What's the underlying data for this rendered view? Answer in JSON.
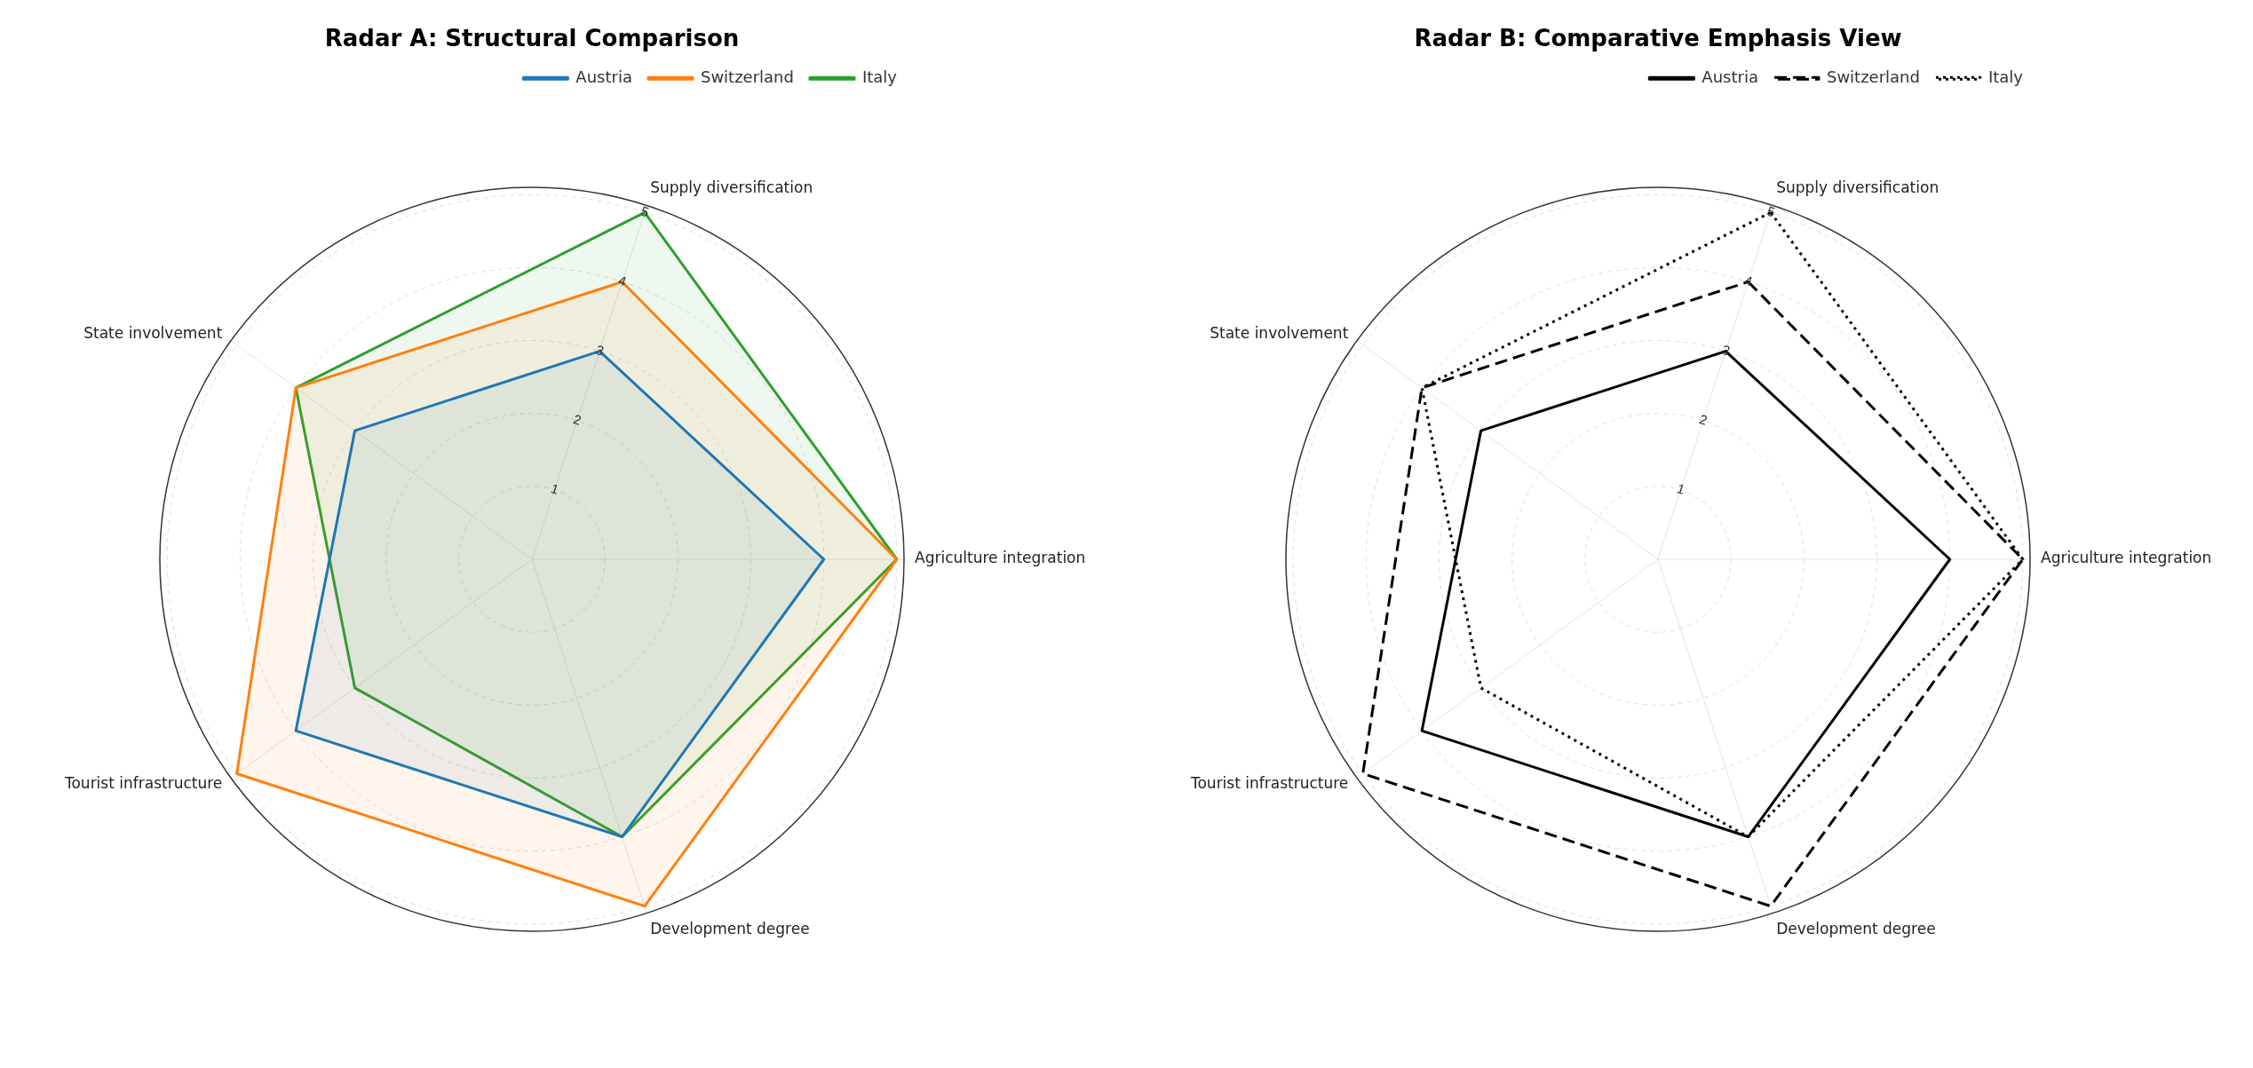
{
  "chart_data": [
    {
      "type": "radar",
      "title": "Radar A: Structural Comparison",
      "categories": [
        "Supply diversification",
        "Agriculture integration",
        "Development degree",
        "Tourist infrastructure",
        "State involvement"
      ],
      "ylim": [
        0,
        5.1
      ],
      "yticks": [
        1,
        2,
        3,
        4,
        5
      ],
      "grid": true,
      "legend": "top right",
      "series": [
        {
          "name": "Austria",
          "color": "#1f77b4",
          "type": "area",
          "line_style": "solid",
          "values": [
            3,
            4,
            4,
            4,
            3
          ]
        },
        {
          "name": "Switzerland",
          "color": "#ff7f0e",
          "type": "area",
          "line_style": "solid",
          "values": [
            4,
            5,
            5,
            5,
            4
          ]
        },
        {
          "name": "Italy",
          "color": "#2ca02c",
          "type": "area",
          "line_style": "solid",
          "values": [
            5,
            5,
            4,
            3,
            4
          ]
        }
      ]
    },
    {
      "type": "radar",
      "title": "Radar B: Comparative Emphasis View",
      "categories": [
        "Supply diversification",
        "Agriculture integration",
        "Development degree",
        "Tourist infrastructure",
        "State involvement"
      ],
      "ylim": [
        0,
        5.1
      ],
      "yticks": [
        1,
        2,
        3,
        4,
        5
      ],
      "grid": true,
      "legend": "top right",
      "series": [
        {
          "name": "Austria",
          "color": "#000000",
          "type": "radar",
          "line_style": "solid",
          "values": [
            3,
            4,
            4,
            4,
            3
          ]
        },
        {
          "name": "Switzerland",
          "color": "#000000",
          "type": "radar",
          "line_style": "dashed",
          "values": [
            4,
            5,
            5,
            5,
            4
          ]
        },
        {
          "name": "Italy",
          "color": "#000000",
          "type": "radar",
          "line_style": "dotted",
          "values": [
            5,
            5,
            4,
            3,
            4
          ]
        }
      ]
    }
  ]
}
